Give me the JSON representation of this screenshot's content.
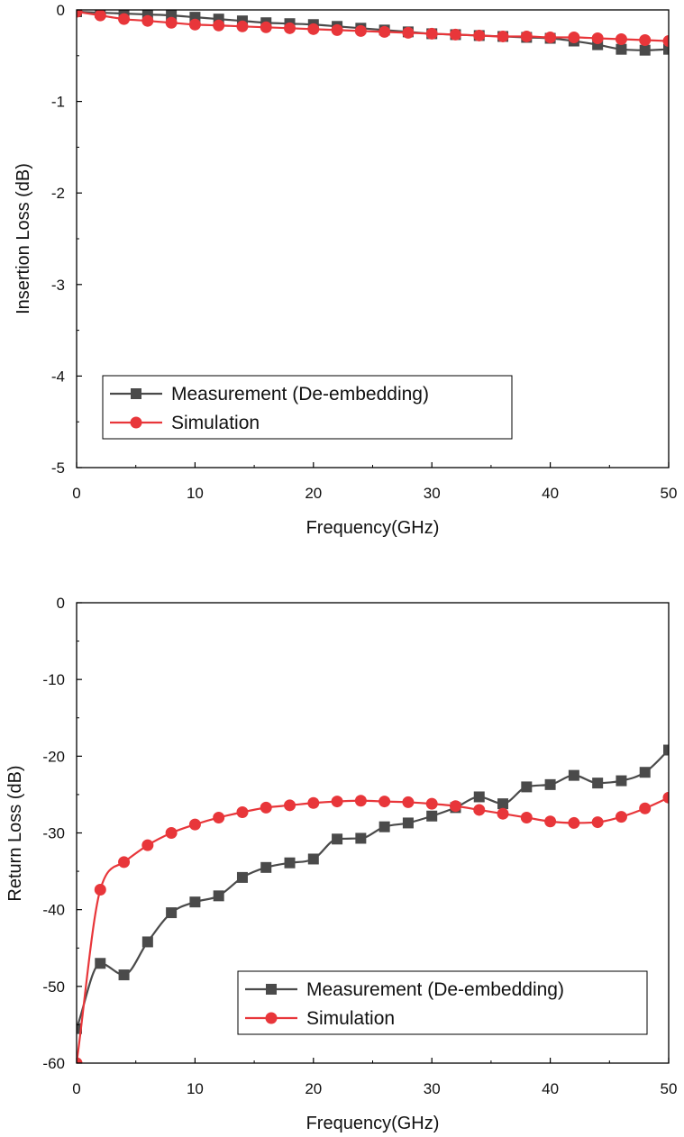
{
  "colors": {
    "measurement": "#4a4a4a",
    "simulation": "#e8363a",
    "axis": "#000000"
  },
  "chart_data": [
    {
      "type": "line",
      "xlabel": "Frequency(GHz)",
      "ylabel": "Insertion Loss (dB)",
      "xlim": [
        0,
        50
      ],
      "ylim": [
        -5,
        0
      ],
      "xticks": [
        "0",
        "10",
        "20",
        "30",
        "40",
        "50"
      ],
      "yticks": [
        "0",
        "-1",
        "-2",
        "-3",
        "-4",
        "-5"
      ],
      "grid": false,
      "legend_position": "bottom-left",
      "series": [
        {
          "name": "Measurement (De-embedding)",
          "marker": "square",
          "x": [
            0,
            2,
            4,
            6,
            8,
            10,
            12,
            14,
            16,
            18,
            20,
            22,
            24,
            26,
            28,
            30,
            32,
            34,
            36,
            38,
            40,
            42,
            44,
            46,
            48,
            50
          ],
          "y": [
            -0.02,
            -0.03,
            -0.04,
            -0.05,
            -0.06,
            -0.08,
            -0.1,
            -0.12,
            -0.14,
            -0.15,
            -0.16,
            -0.18,
            -0.2,
            -0.22,
            -0.24,
            -0.26,
            -0.27,
            -0.28,
            -0.29,
            -0.3,
            -0.31,
            -0.34,
            -0.38,
            -0.43,
            -0.44,
            -0.43
          ]
        },
        {
          "name": "Simulation",
          "marker": "circle",
          "x": [
            0,
            2,
            4,
            6,
            8,
            10,
            12,
            14,
            16,
            18,
            20,
            22,
            24,
            26,
            28,
            30,
            32,
            34,
            36,
            38,
            40,
            42,
            44,
            46,
            48,
            50
          ],
          "y": [
            -0.02,
            -0.06,
            -0.1,
            -0.12,
            -0.14,
            -0.16,
            -0.17,
            -0.18,
            -0.19,
            -0.2,
            -0.21,
            -0.22,
            -0.23,
            -0.24,
            -0.25,
            -0.26,
            -0.27,
            -0.28,
            -0.29,
            -0.29,
            -0.3,
            -0.3,
            -0.31,
            -0.32,
            -0.33,
            -0.34
          ]
        }
      ]
    },
    {
      "type": "line",
      "xlabel": "Frequency(GHz)",
      "ylabel": "Return Loss (dB)",
      "xlim": [
        0,
        50
      ],
      "ylim": [
        -60,
        0
      ],
      "xticks": [
        "0",
        "10",
        "20",
        "30",
        "40",
        "50"
      ],
      "yticks": [
        "0",
        "-10",
        "-20",
        "-30",
        "-40",
        "-50",
        "-60"
      ],
      "grid": false,
      "legend_position": "bottom-right",
      "series": [
        {
          "name": "Measurement (De-embedding)",
          "marker": "square",
          "x": [
            0,
            2,
            4,
            6,
            8,
            10,
            12,
            14,
            16,
            18,
            20,
            22,
            24,
            26,
            28,
            30,
            32,
            34,
            36,
            38,
            40,
            42,
            44,
            46,
            48,
            50
          ],
          "y": [
            -55.5,
            -47,
            -48.5,
            -44.2,
            -40.4,
            -39,
            -38.2,
            -35.8,
            -34.5,
            -33.9,
            -33.4,
            -30.8,
            -30.7,
            -29.2,
            -28.7,
            -27.8,
            -26.7,
            -25.3,
            -26.2,
            -24,
            -23.7,
            -22.5,
            -23.5,
            -23.2,
            -22.1,
            -19.2
          ]
        },
        {
          "name": "Simulation",
          "marker": "circle",
          "x": [
            0,
            2,
            4,
            6,
            8,
            10,
            12,
            14,
            16,
            18,
            20,
            22,
            24,
            26,
            28,
            30,
            32,
            34,
            36,
            38,
            40,
            42,
            44,
            46,
            48,
            50
          ],
          "y": [
            -60,
            -37.4,
            -33.8,
            -31.6,
            -30,
            -28.9,
            -28,
            -27.3,
            -26.7,
            -26.4,
            -26.1,
            -25.9,
            -25.8,
            -25.9,
            -26,
            -26.2,
            -26.5,
            -27,
            -27.5,
            -28,
            -28.5,
            -28.7,
            -28.6,
            -27.9,
            -26.8,
            -25.4
          ]
        }
      ]
    }
  ]
}
